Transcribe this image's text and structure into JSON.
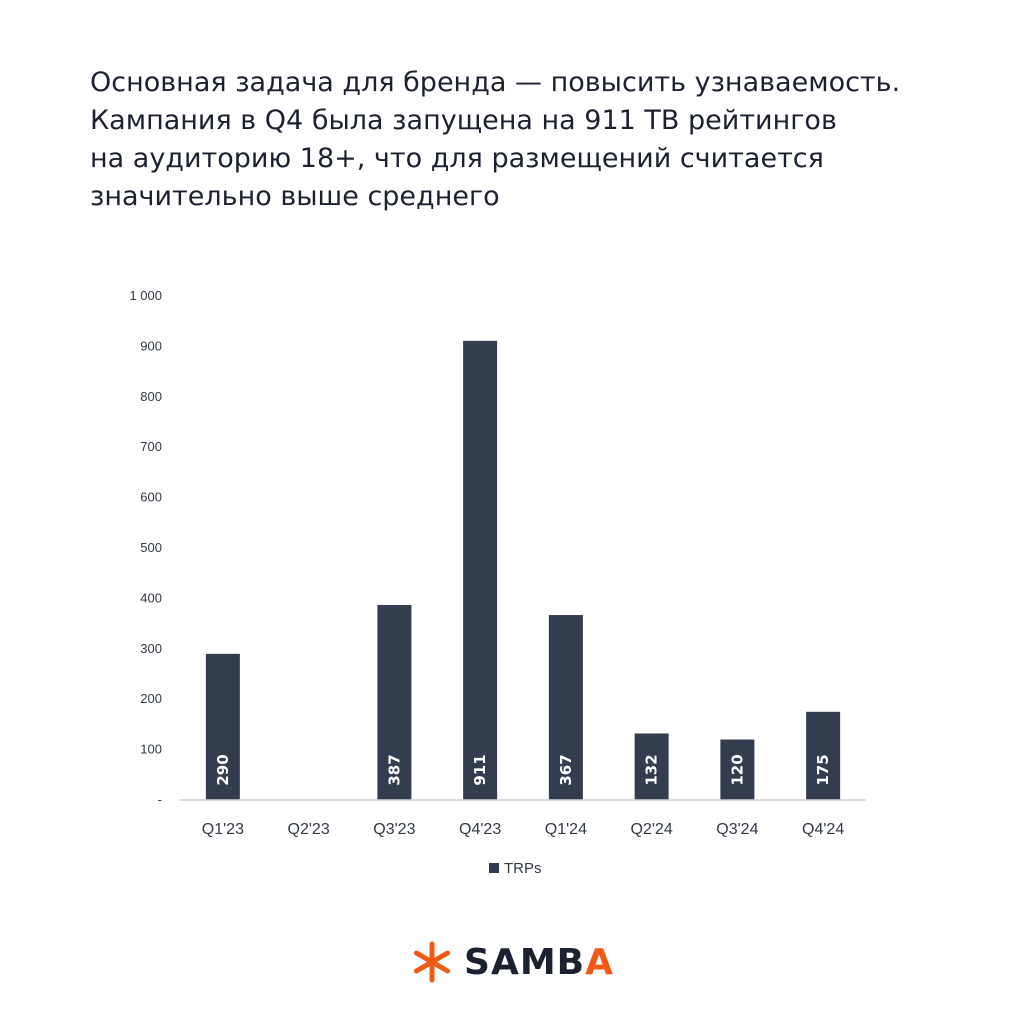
{
  "headline": {
    "lines": [
      "Основная задача для бренда — повысить узнаваемость.",
      "Кампания в Q4 была запущена на 911 ТВ рейтингов",
      "на аудиторию 18+, что для размещений считается",
      "значительно выше среднего"
    ]
  },
  "chart_data": {
    "type": "bar",
    "categories": [
      "Q1'23",
      "Q2'23",
      "Q3'23",
      "Q4'23",
      "Q1'24",
      "Q2'24",
      "Q3'24",
      "Q4'24"
    ],
    "series": [
      {
        "name": "TRPs",
        "values": [
          290,
          0,
          387,
          911,
          367,
          132,
          120,
          175
        ]
      }
    ],
    "data_labels": [
      "290",
      "",
      "387",
      "911",
      "367",
      "132",
      "120",
      "175"
    ],
    "ylim": [
      0,
      1000
    ],
    "yticks": [
      {
        "value": 0,
        "label": "-"
      },
      {
        "value": 100,
        "label": "100"
      },
      {
        "value": 200,
        "label": "200"
      },
      {
        "value": 300,
        "label": "300"
      },
      {
        "value": 400,
        "label": "400"
      },
      {
        "value": 500,
        "label": "500"
      },
      {
        "value": 600,
        "label": "600"
      },
      {
        "value": 700,
        "label": "700"
      },
      {
        "value": 800,
        "label": "800"
      },
      {
        "value": 900,
        "label": "900"
      },
      {
        "value": 1000,
        "label": "1 000"
      }
    ],
    "grid": false,
    "legend": "bottom-center",
    "title": "",
    "xlabel": "",
    "ylabel": "",
    "bar_color": "#343d4e"
  },
  "logo": {
    "text_main": "SAMB",
    "text_last": "A",
    "brand_color": "#f05a14",
    "icon": "asterisk-logo-icon"
  }
}
